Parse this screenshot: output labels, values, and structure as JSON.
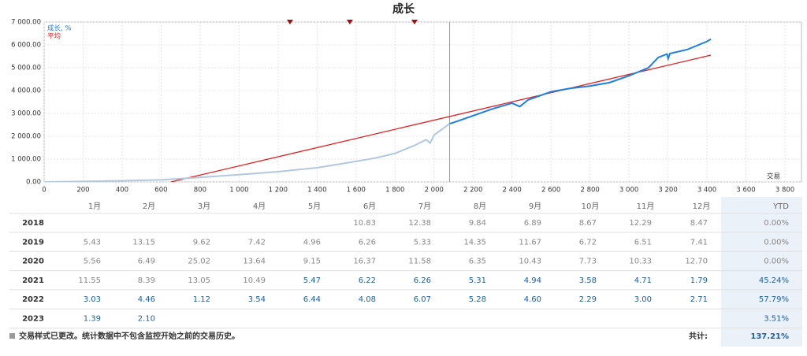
{
  "chart_data": {
    "type": "line",
    "title": "成长",
    "x_label": "交易",
    "xlim": [
      0,
      3800
    ],
    "ylim": [
      0,
      7000
    ],
    "xticks": [
      0,
      200,
      400,
      600,
      800,
      {
        "value": 1000,
        "label": "1 000"
      },
      {
        "value": 1200,
        "label": "1 200"
      },
      {
        "value": 1400,
        "label": "1 400"
      },
      {
        "value": 1600,
        "label": "1 600"
      },
      {
        "value": 1800,
        "label": "1 800"
      },
      {
        "value": 2000,
        "label": "2 000"
      },
      {
        "value": 2200,
        "label": "2 200"
      },
      {
        "value": 2400,
        "label": "2 400"
      },
      {
        "value": 2600,
        "label": "2 600"
      },
      {
        "value": 2800,
        "label": "2 800"
      },
      {
        "value": 3000,
        "label": "3 000"
      },
      {
        "value": 3200,
        "label": "3 200"
      },
      {
        "value": 3400,
        "label": "3 400"
      },
      {
        "value": 3600,
        "label": "3 600"
      },
      {
        "value": 3800,
        "label": "3 800"
      }
    ],
    "yticks": [
      {
        "value": 0,
        "label": "0.00"
      },
      {
        "value": 1000,
        "label": "1 000.00"
      },
      {
        "value": 2000,
        "label": "2 000.00"
      },
      {
        "value": 3000,
        "label": "3 000.00"
      },
      {
        "value": 4000,
        "label": "4 000.00"
      },
      {
        "value": 5000,
        "label": "5 000.00"
      },
      {
        "value": 6000,
        "label": "6 000.00"
      },
      {
        "value": 7000,
        "label": "7 000.00"
      }
    ],
    "grid": true,
    "divider_x": 2080,
    "history_color": "#b0c8e0",
    "event_markers": [
      1261,
      1568,
      1900
    ],
    "event_color": "#a01010",
    "series": [
      {
        "name": "成长, %",
        "color": "#1e7fe0",
        "x": [
          0,
          200,
          400,
          600,
          800,
          1000,
          1200,
          1400,
          1600,
          1700,
          1800,
          1900,
          1960,
          1980,
          2000,
          2080,
          2100,
          2200,
          2300,
          2400,
          2440,
          2482,
          2600,
          2700,
          2800,
          2900,
          3000,
          3100,
          3150,
          3195,
          3201,
          3210,
          3300,
          3400,
          3420
        ],
        "values": [
          0,
          20,
          50,
          90,
          200,
          320,
          450,
          620,
          900,
          1050,
          1250,
          1600,
          1850,
          1700,
          2050,
          2550,
          2600,
          2900,
          3200,
          3450,
          3300,
          3590,
          3950,
          4100,
          4200,
          4350,
          4650,
          5000,
          5450,
          5600,
          5400,
          5620,
          5800,
          6150,
          6250
        ]
      },
      {
        "name": "平均",
        "color": "#e02020",
        "x": [
          650,
          3420
        ],
        "values": [
          0,
          5550
        ]
      }
    ]
  },
  "table": {
    "header": [
      "1月",
      "2月",
      "3月",
      "4月",
      "5月",
      "6月",
      "7月",
      "8月",
      "9月",
      "10月",
      "11月",
      "12月",
      "YTD"
    ],
    "rows": [
      [
        "2018",
        null,
        null,
        null,
        null,
        null,
        "10.83",
        "12.38",
        "9.84",
        "6.89",
        "8.67",
        "12.29",
        "8.47",
        "0.00%"
      ],
      [
        "2019",
        "5.43",
        "13.15",
        "9.62",
        "7.42",
        "4.96",
        "6.26",
        "5.33",
        "14.35",
        "11.67",
        "6.72",
        "6.51",
        "7.41",
        "0.00%"
      ],
      [
        "2020",
        "5.56",
        "6.49",
        "25.02",
        "13.64",
        "9.15",
        "16.37",
        "11.58",
        "6.35",
        "10.43",
        "7.73",
        "10.33",
        "12.70",
        "0.00%"
      ],
      [
        "2021",
        "11.55",
        "8.39",
        "13.05",
        "10.49",
        "5.47",
        "6.22",
        "6.26",
        "5.31",
        "4.94",
        "3.58",
        "4.71",
        "1.79",
        "45.24%"
      ],
      [
        "2022",
        "3.03",
        "4.46",
        "1.12",
        "3.54",
        "6.44",
        "4.08",
        "6.07",
        "5.28",
        "4.60",
        "2.29",
        "3.00",
        "2.71",
        "57.79%"
      ],
      [
        "2023",
        "1.39",
        "2.10",
        null,
        null,
        null,
        null,
        null,
        null,
        null,
        null,
        null,
        null,
        "3.51%"
      ]
    ],
    "footer_note": "交易样式已更改。统计数据中不包含监控开始之前的交易历史。",
    "total_label": "共计:",
    "total": "137.21%"
  }
}
